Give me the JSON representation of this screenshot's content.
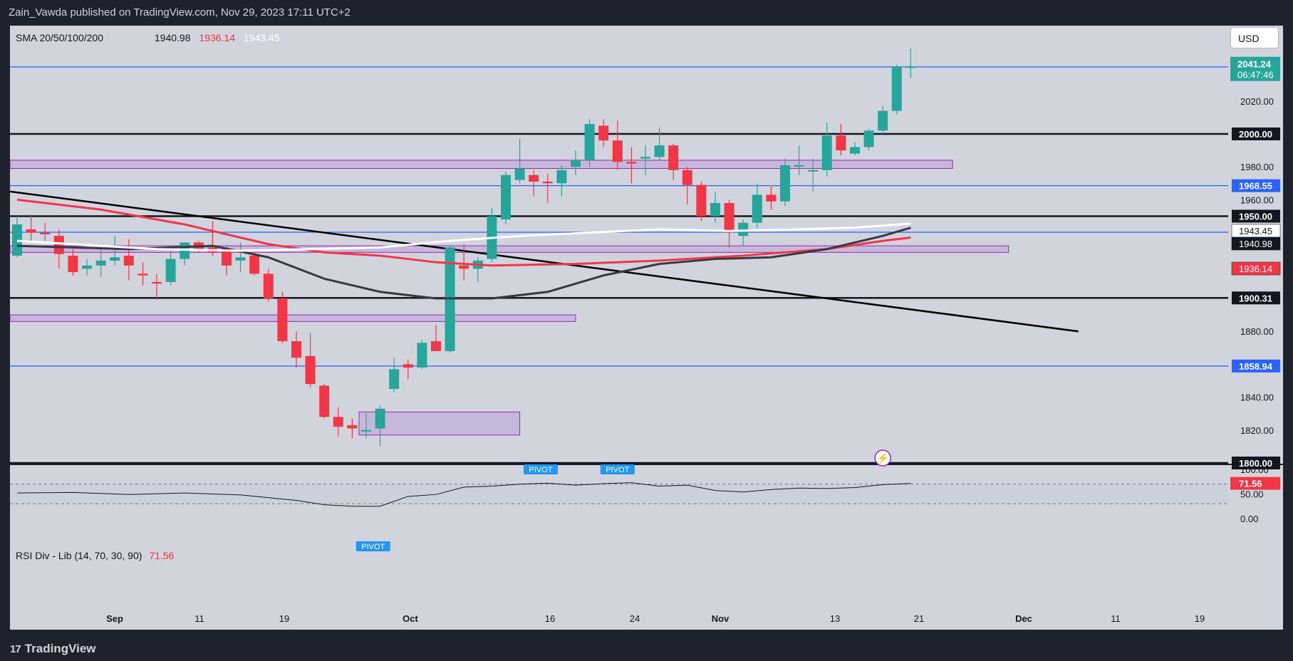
{
  "header": {
    "publisher": "Zain_Vawda published on TradingView.com, Nov 29, 2023 17:11 UTC+2"
  },
  "footer": {
    "brand": "TradingView"
  },
  "currency_button": "USD",
  "sma_legend": {
    "label": "SMA 20/50/100/200",
    "v1": "1940.98",
    "v2": "1936.14",
    "v3": "1943.45",
    "v1_color": "#131722",
    "v2_color": "#f23645",
    "v3_color": "#ffffff"
  },
  "rsi_legend": {
    "label": "RSI Div - Lib (14, 70, 30, 90)",
    "value": "71.56"
  },
  "colors": {
    "up": "#26a69a",
    "down": "#f23645",
    "sma20": "#ffffff",
    "sma50": "#363a45",
    "sma100": "#f23645",
    "trend": "#000000",
    "blue_level": "#2962ff",
    "zone_fill": "#c4b3d9",
    "zone_stroke": "#9c27b0"
  },
  "chart_data": {
    "type": "candlestick",
    "ylim": [
      1800,
      2050
    ],
    "y_ticks": [
      "2020.00",
      "1980.00",
      "1960.00",
      "1880.00",
      "1840.00",
      "1820.00"
    ],
    "x_ticks": [
      "Sep",
      "11",
      "19",
      "Oct",
      "16",
      "24",
      "Nov",
      "13",
      "21",
      "Dec",
      "11",
      "19"
    ],
    "candles": [
      {
        "d": "Aug 31",
        "o": 1926,
        "h": 1950,
        "l": 1925,
        "c": 1945
      },
      {
        "d": "Sep 1",
        "o": 1942,
        "h": 1951,
        "l": 1934,
        "c": 1940
      },
      {
        "d": "Sep 4",
        "o": 1940,
        "h": 1946,
        "l": 1935,
        "c": 1939
      },
      {
        "d": "Sep 5",
        "o": 1938,
        "h": 1942,
        "l": 1918,
        "c": 1927
      },
      {
        "d": "Sep 6",
        "o": 1926,
        "h": 1930,
        "l": 1914,
        "c": 1916
      },
      {
        "d": "Sep 7",
        "o": 1918,
        "h": 1924,
        "l": 1914,
        "c": 1920
      },
      {
        "d": "Sep 8",
        "o": 1920,
        "h": 1932,
        "l": 1913,
        "c": 1923
      },
      {
        "d": "Sep 11",
        "o": 1923,
        "h": 1938,
        "l": 1920,
        "c": 1925
      },
      {
        "d": "Sep 12",
        "o": 1926,
        "h": 1936,
        "l": 1911,
        "c": 1920
      },
      {
        "d": "Sep 13",
        "o": 1915,
        "h": 1922,
        "l": 1908,
        "c": 1914
      },
      {
        "d": "Sep 14",
        "o": 1910,
        "h": 1915,
        "l": 1899,
        "c": 1909
      },
      {
        "d": "Sep 15",
        "o": 1910,
        "h": 1931,
        "l": 1908,
        "c": 1924
      },
      {
        "d": "Sep 18",
        "o": 1924,
        "h": 1934,
        "l": 1920,
        "c": 1934
      },
      {
        "d": "Sep 19",
        "o": 1934,
        "h": 1935,
        "l": 1928,
        "c": 1930
      },
      {
        "d": "Sep 20",
        "o": 1931,
        "h": 1947,
        "l": 1926,
        "c": 1928
      },
      {
        "d": "Sep 21",
        "o": 1930,
        "h": 1932,
        "l": 1914,
        "c": 1920
      },
      {
        "d": "Sep 22",
        "o": 1923,
        "h": 1934,
        "l": 1916,
        "c": 1925
      },
      {
        "d": "Sep 25",
        "o": 1926,
        "h": 1928,
        "l": 1914,
        "c": 1915
      },
      {
        "d": "Sep 26",
        "o": 1915,
        "h": 1918,
        "l": 1898,
        "c": 1900
      },
      {
        "d": "Sep 27",
        "o": 1900,
        "h": 1904,
        "l": 1873,
        "c": 1874
      },
      {
        "d": "Sep 28",
        "o": 1874,
        "h": 1880,
        "l": 1858,
        "c": 1864
      },
      {
        "d": "Sep 29",
        "o": 1865,
        "h": 1879,
        "l": 1846,
        "c": 1848
      },
      {
        "d": "Oct 2",
        "o": 1847,
        "h": 1848,
        "l": 1827,
        "c": 1828
      },
      {
        "d": "Oct 3",
        "o": 1828,
        "h": 1834,
        "l": 1816,
        "c": 1822
      },
      {
        "d": "Oct 4",
        "o": 1823,
        "h": 1827,
        "l": 1815,
        "c": 1821
      },
      {
        "d": "Oct 5",
        "o": 1820,
        "h": 1830,
        "l": 1815,
        "c": 1820
      },
      {
        "d": "Oct 6",
        "o": 1821,
        "h": 1835,
        "l": 1810,
        "c": 1833
      },
      {
        "d": "Oct 9",
        "o": 1845,
        "h": 1864,
        "l": 1843,
        "c": 1857
      },
      {
        "d": "Oct 10",
        "o": 1860,
        "h": 1863,
        "l": 1851,
        "c": 1858
      },
      {
        "d": "Oct 11",
        "o": 1858,
        "h": 1875,
        "l": 1857,
        "c": 1873
      },
      {
        "d": "Oct 12",
        "o": 1874,
        "h": 1884,
        "l": 1868,
        "c": 1868
      },
      {
        "d": "Oct 13",
        "o": 1868,
        "h": 1932,
        "l": 1867,
        "c": 1931
      },
      {
        "d": "Oct 16",
        "o": 1920,
        "h": 1933,
        "l": 1911,
        "c": 1918
      },
      {
        "d": "Oct 17",
        "o": 1918,
        "h": 1925,
        "l": 1910,
        "c": 1923
      },
      {
        "d": "Oct 18",
        "o": 1924,
        "h": 1955,
        "l": 1922,
        "c": 1950
      },
      {
        "d": "Oct 19",
        "o": 1948,
        "h": 1977,
        "l": 1945,
        "c": 1975
      },
      {
        "d": "Oct 20",
        "o": 1972,
        "h": 1997,
        "l": 1970,
        "c": 1979
      },
      {
        "d": "Oct 23",
        "o": 1975,
        "h": 1978,
        "l": 1962,
        "c": 1971
      },
      {
        "d": "Oct 24",
        "o": 1971,
        "h": 1976,
        "l": 1958,
        "c": 1970
      },
      {
        "d": "Oct 25",
        "o": 1970,
        "h": 1981,
        "l": 1962,
        "c": 1978
      },
      {
        "d": "Oct 26",
        "o": 1980,
        "h": 1990,
        "l": 1975,
        "c": 1984
      },
      {
        "d": "Oct 27",
        "o": 1984,
        "h": 2009,
        "l": 1980,
        "c": 2006
      },
      {
        "d": "Oct 30",
        "o": 2005,
        "h": 2009,
        "l": 1992,
        "c": 1996
      },
      {
        "d": "Oct 31",
        "o": 1996,
        "h": 2008,
        "l": 1978,
        "c": 1983
      },
      {
        "d": "Nov 1",
        "o": 1983,
        "h": 1992,
        "l": 1970,
        "c": 1982
      },
      {
        "d": "Nov 2",
        "o": 1985,
        "h": 1993,
        "l": 1975,
        "c": 1986
      },
      {
        "d": "Nov 3",
        "o": 1986,
        "h": 2004,
        "l": 1984,
        "c": 1993
      },
      {
        "d": "Nov 6",
        "o": 1993,
        "h": 1994,
        "l": 1972,
        "c": 1978
      },
      {
        "d": "Nov 7",
        "o": 1978,
        "h": 1980,
        "l": 1957,
        "c": 1969
      },
      {
        "d": "Nov 8",
        "o": 1969,
        "h": 1971,
        "l": 1947,
        "c": 1950
      },
      {
        "d": "Nov 9",
        "o": 1950,
        "h": 1965,
        "l": 1946,
        "c": 1958
      },
      {
        "d": "Nov 10",
        "o": 1958,
        "h": 1960,
        "l": 1931,
        "c": 1940
      },
      {
        "d": "Nov 13",
        "o": 1938,
        "h": 1948,
        "l": 1932,
        "c": 1946
      },
      {
        "d": "Nov 14",
        "o": 1946,
        "h": 1970,
        "l": 1943,
        "c": 1963
      },
      {
        "d": "Nov 15",
        "o": 1963,
        "h": 1968,
        "l": 1954,
        "c": 1959
      },
      {
        "d": "Nov 16",
        "o": 1959,
        "h": 1985,
        "l": 1956,
        "c": 1981
      },
      {
        "d": "Nov 17",
        "o": 1981,
        "h": 1993,
        "l": 1975,
        "c": 1981
      },
      {
        "d": "Nov 20",
        "o": 1978,
        "h": 1985,
        "l": 1965,
        "c": 1978
      },
      {
        "d": "Nov 21",
        "o": 1978,
        "h": 2007,
        "l": 1974,
        "c": 1999
      },
      {
        "d": "Nov 22",
        "o": 1999,
        "h": 2006,
        "l": 1987,
        "c": 1990
      },
      {
        "d": "Nov 23",
        "o": 1988,
        "h": 1995,
        "l": 1987,
        "c": 1992
      },
      {
        "d": "Nov 24",
        "o": 1992,
        "h": 2003,
        "l": 1990,
        "c": 2002
      },
      {
        "d": "Nov 27",
        "o": 2002,
        "h": 2017,
        "l": 2000,
        "c": 2014
      },
      {
        "d": "Nov 28",
        "o": 2014,
        "h": 2042,
        "l": 2012,
        "c": 2041
      },
      {
        "d": "Nov 29",
        "o": 2041,
        "h": 2052,
        "l": 2034,
        "c": 2041
      }
    ],
    "sma20": [
      [
        0,
        1935
      ],
      [
        10,
        1930
      ],
      [
        16,
        1929
      ],
      [
        21,
        1930
      ],
      [
        26,
        1931
      ],
      [
        31,
        1935
      ],
      [
        36,
        1938
      ],
      [
        41,
        1940
      ],
      [
        46,
        1942
      ],
      [
        51,
        1941
      ],
      [
        56,
        1942
      ],
      [
        60,
        1943
      ],
      [
        64,
        1945.5
      ]
    ],
    "sma50": [
      [
        0,
        1932
      ],
      [
        8,
        1930
      ],
      [
        14,
        1932
      ],
      [
        18,
        1925
      ],
      [
        22,
        1912
      ],
      [
        26,
        1904
      ],
      [
        30,
        1900
      ],
      [
        34,
        1900
      ],
      [
        38,
        1904
      ],
      [
        42,
        1914
      ],
      [
        46,
        1921
      ],
      [
        50,
        1924
      ],
      [
        54,
        1925
      ],
      [
        58,
        1930
      ],
      [
        62,
        1938
      ],
      [
        64,
        1943
      ]
    ],
    "sma100": [
      [
        0,
        1960
      ],
      [
        6,
        1954
      ],
      [
        12,
        1945
      ],
      [
        18,
        1933
      ],
      [
        22,
        1928
      ],
      [
        26,
        1926
      ],
      [
        30,
        1922
      ],
      [
        34,
        1920
      ],
      [
        40,
        1921
      ],
      [
        46,
        1923
      ],
      [
        52,
        1926
      ],
      [
        58,
        1930
      ],
      [
        62,
        1935
      ],
      [
        64,
        1937
      ]
    ],
    "trendline": {
      "from": [
        0,
        1965
      ],
      "to": [
        76,
        1880
      ]
    },
    "horizontal_levels": [
      {
        "value": 2000.0,
        "label": "2000.00",
        "style": "black"
      },
      {
        "value": 1950.0,
        "label": "1950.00",
        "style": "black"
      },
      {
        "value": 1900.31,
        "label": "1900.31",
        "style": "black"
      },
      {
        "value": 1800.0,
        "label": "1800.00",
        "style": "black"
      },
      {
        "value": 2040.75,
        "label": "2040.75",
        "style": "blue"
      },
      {
        "value": 1968.55,
        "label": "1968.55",
        "style": "blue"
      },
      {
        "value": 1940.25,
        "label": "1940.25",
        "style": "blue"
      },
      {
        "value": 1858.94,
        "label": "1858.94",
        "style": "blue"
      }
    ],
    "zones": [
      {
        "from": 1979,
        "to": 1984,
        "x0": 0,
        "x1": 67
      },
      {
        "from": 1928,
        "to": 1932,
        "x0": 0,
        "x1": 71
      },
      {
        "from": 1886,
        "to": 1890,
        "x0": 0,
        "x1": 40
      },
      {
        "from": 1817,
        "to": 1831,
        "x0": 25,
        "x1": 36
      }
    ],
    "price_labels": {
      "last": {
        "price": "2041.24",
        "countdown": "06:47:46"
      },
      "sma": [
        {
          "text": "1943.45",
          "bg": "#ffffff",
          "fg": "#131722"
        },
        {
          "text": "1940.98",
          "bg": "#131722",
          "fg": "#ffffff"
        },
        {
          "text": "1936.14",
          "bg": "#f23645",
          "fg": "#ffffff"
        }
      ]
    },
    "rsi": {
      "ylim": [
        0,
        100
      ],
      "y_ticks": [
        "100.00",
        "50.00",
        "0.00"
      ],
      "levels": [
        70,
        30
      ],
      "last_label": "71.56",
      "pivot_label": "PIVOT",
      "values": [
        {
          "x": 0,
          "v": 52
        },
        {
          "x": 4,
          "v": 53
        },
        {
          "x": 8,
          "v": 49
        },
        {
          "x": 12,
          "v": 52
        },
        {
          "x": 16,
          "v": 48
        },
        {
          "x": 20,
          "v": 37
        },
        {
          "x": 22,
          "v": 28
        },
        {
          "x": 24,
          "v": 25
        },
        {
          "x": 26,
          "v": 25
        },
        {
          "x": 28,
          "v": 45
        },
        {
          "x": 30,
          "v": 49
        },
        {
          "x": 32,
          "v": 64
        },
        {
          "x": 34,
          "v": 66
        },
        {
          "x": 36,
          "v": 70
        },
        {
          "x": 38,
          "v": 72
        },
        {
          "x": 40,
          "v": 68
        },
        {
          "x": 42,
          "v": 71
        },
        {
          "x": 44,
          "v": 73
        },
        {
          "x": 46,
          "v": 66
        },
        {
          "x": 48,
          "v": 68
        },
        {
          "x": 50,
          "v": 57
        },
        {
          "x": 52,
          "v": 54
        },
        {
          "x": 54,
          "v": 59
        },
        {
          "x": 56,
          "v": 62
        },
        {
          "x": 58,
          "v": 61
        },
        {
          "x": 60,
          "v": 63
        },
        {
          "x": 62,
          "v": 69
        },
        {
          "x": 64,
          "v": 71.56
        }
      ],
      "pivots": [
        {
          "x": 37.5,
          "top": true
        },
        {
          "x": 43,
          "top": true
        },
        {
          "x": 25.5,
          "top": false
        }
      ]
    }
  }
}
